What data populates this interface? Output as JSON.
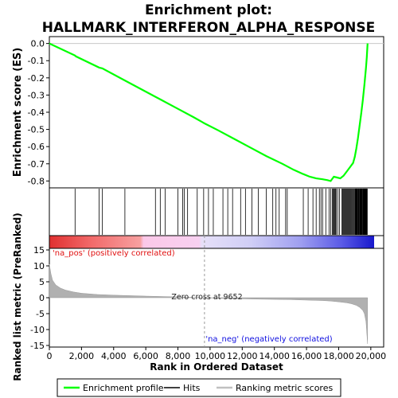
{
  "chart_data": {
    "type": "line",
    "title_line1": "Enrichment plot:",
    "title_line2": "HALLMARK_INTERFERON_ALPHA_RESPONSE",
    "es_panel": {
      "ylabel": "Enrichment score (ES)",
      "ylim": [
        -0.84,
        0.04
      ],
      "yticks": [
        0.0,
        -0.1,
        -0.2,
        -0.3,
        -0.4,
        -0.5,
        -0.6,
        -0.7,
        -0.8
      ],
      "ytick_labels": [
        "0.0",
        "-0.1",
        "-0.2",
        "-0.3",
        "-0.4",
        "-0.5",
        "-0.6",
        "-0.7",
        "-0.8"
      ],
      "series": [
        {
          "name": "Enrichment profile",
          "color": "#00ff00",
          "x": [
            0,
            1600,
            1650,
            3100,
            3300,
            4700,
            6600,
            7000,
            8000,
            9000,
            9652,
            10500,
            11500,
            12500,
            13500,
            14500,
            15200,
            15800,
            16200,
            16600,
            17000,
            17300,
            17500,
            17700,
            17900,
            18100,
            18300,
            18500,
            18700,
            18900,
            19000,
            19100,
            19200,
            19300,
            19400,
            19500,
            19600,
            19650,
            19700,
            19750,
            19800
          ],
          "y": [
            0.0,
            -0.07,
            -0.075,
            -0.14,
            -0.145,
            -0.215,
            -0.31,
            -0.33,
            -0.38,
            -0.43,
            -0.465,
            -0.505,
            -0.555,
            -0.605,
            -0.655,
            -0.7,
            -0.735,
            -0.76,
            -0.775,
            -0.785,
            -0.79,
            -0.795,
            -0.8,
            -0.775,
            -0.78,
            -0.785,
            -0.77,
            -0.745,
            -0.72,
            -0.695,
            -0.66,
            -0.61,
            -0.55,
            -0.48,
            -0.41,
            -0.33,
            -0.24,
            -0.19,
            -0.14,
            -0.08,
            0.0
          ]
        }
      ]
    },
    "hits_panel": {
      "legend_label": "Hits",
      "hit_positions": [
        1600,
        3100,
        3300,
        4700,
        6600,
        6900,
        7200,
        8000,
        8300,
        8400,
        8600,
        9200,
        9600,
        9900,
        10200,
        10800,
        11100,
        11400,
        11900,
        12200,
        12600,
        13000,
        13500,
        13900,
        14100,
        14300,
        14700,
        14800,
        15800,
        16100,
        16400,
        16600,
        16800,
        16900,
        17000,
        17200,
        17400,
        17500,
        17600,
        17650,
        17700,
        17750,
        17800,
        17850,
        17950,
        18050,
        18200,
        18250,
        18300,
        18350,
        18400,
        18450,
        18500,
        18550,
        18600,
        18650,
        18700,
        18750,
        18800,
        18850,
        18900,
        18950,
        19000,
        19020,
        19050,
        19080,
        19100,
        19130,
        19160,
        19200,
        19230,
        19260,
        19300,
        19320,
        19350,
        19380,
        19400,
        19430,
        19460,
        19500,
        19520,
        19550,
        19580,
        19600,
        19620,
        19650,
        19680,
        19700,
        19720,
        19750,
        19780
      ]
    },
    "metric_panel": {
      "ylabel": "Ranked list metric (PreRanked)",
      "ylim": [
        -15.5,
        15.5
      ],
      "yticks": [
        15,
        10,
        5,
        0,
        -5,
        -10,
        -15
      ],
      "ytick_labels": [
        "15",
        "10",
        "5",
        "0",
        "-5",
        "-10",
        "-15"
      ],
      "pos_label": "'na_pos' (positively correlated)",
      "neg_label": "'na_neg' (negatively correlated)",
      "zero_cross_label": "Zero cross at 9652",
      "zero_cross": 9652,
      "pos_color": "#ff0000",
      "neg_color": "#0000ff",
      "metric_x": [
        0,
        50,
        100,
        200,
        400,
        700,
        1000,
        1500,
        2000,
        3000,
        4000,
        6000,
        8000,
        9652,
        11000,
        13000,
        15000,
        16000,
        17000,
        17500,
        18000,
        18500,
        18800,
        19100,
        19300,
        19500,
        19600,
        19700,
        19800
      ],
      "metric_y": [
        10.5,
        9.0,
        7.5,
        5.5,
        4.0,
        3.0,
        2.4,
        1.8,
        1.4,
        1.0,
        0.8,
        0.5,
        0.25,
        0.0,
        -0.25,
        -0.45,
        -0.6,
        -0.75,
        -0.9,
        -1.05,
        -1.3,
        -1.6,
        -1.9,
        -2.4,
        -3.0,
        -4.0,
        -5.0,
        -7.5,
        -14.5
      ]
    },
    "xaxis": {
      "label": "Rank in Ordered Dataset",
      "xlim": [
        0,
        20800
      ],
      "ticks": [
        0,
        2000,
        4000,
        6000,
        8000,
        10000,
        12000,
        14000,
        16000,
        18000,
        20000
      ],
      "tick_labels": [
        "0",
        "2,000",
        "4,000",
        "6,000",
        "8,000",
        "10,000",
        "12,000",
        "14,000",
        "16,000",
        "18,000",
        "20,000"
      ]
    },
    "legend": {
      "placement": "bottom",
      "entries": [
        {
          "label": "Enrichment profile",
          "color": "#00ff00"
        },
        {
          "label": "Hits",
          "color": "#000000"
        },
        {
          "label": "Ranking metric scores",
          "color": "#c0c0c0"
        }
      ]
    }
  }
}
